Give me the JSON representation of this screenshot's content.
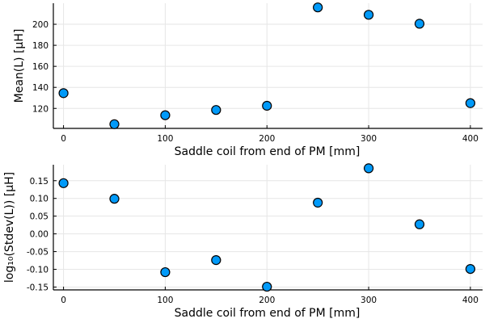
{
  "chart_data": [
    {
      "type": "scatter",
      "xlabel": "Saddle coil from end of PM [mm]",
      "ylabel": "Mean(L) [µH]",
      "x": [
        0,
        50,
        100,
        150,
        200,
        250,
        300,
        350,
        400
      ],
      "y": [
        134.5,
        105.0,
        113.5,
        118.5,
        122.5,
        216.0,
        209.0,
        200.5,
        125.0
      ],
      "xlim": [
        -10,
        412
      ],
      "ylim": [
        101,
        220
      ],
      "xticks": [
        "0",
        "100",
        "200",
        "300",
        "400"
      ],
      "yticks": [
        "120",
        "140",
        "160",
        "180",
        "200"
      ],
      "grid": true,
      "marker_color": "#009af9"
    },
    {
      "type": "scatter",
      "xlabel": "Saddle coil from end of PM [mm]",
      "ylabel": "log₁₀(Stdev(L)) [µH]",
      "x": [
        0,
        50,
        100,
        150,
        200,
        250,
        300,
        350,
        400
      ],
      "y": [
        0.143,
        0.099,
        -0.108,
        -0.074,
        -0.149,
        0.088,
        0.185,
        0.027,
        -0.099
      ],
      "xlim": [
        -10,
        412
      ],
      "ylim": [
        -0.158,
        0.195
      ],
      "xticks": [
        "0",
        "100",
        "200",
        "300",
        "400"
      ],
      "yticks": [
        "0.15",
        "0.10",
        "0.05",
        "0.00",
        "-0.05",
        "-0.10",
        "-0.15"
      ],
      "grid": true,
      "marker_color": "#009af9"
    }
  ]
}
